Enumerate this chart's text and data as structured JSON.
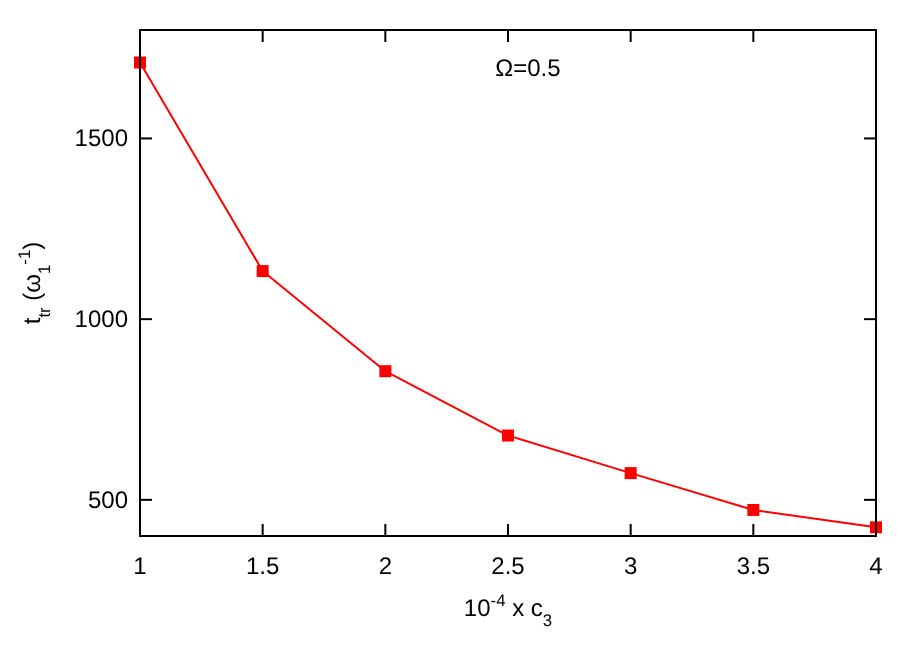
{
  "chart_data": {
    "type": "line",
    "xlabel": "10$^{-4}$ x c$_{3}$",
    "ylabel": "t$_{tr}$ (ω$_{1}$$^{-1}$)",
    "annotations": [
      "Ω=0.5"
    ],
    "x": [
      1,
      1.5,
      2,
      2.5,
      3,
      3.5,
      4
    ],
    "series": [
      {
        "color": "#ff0000",
        "values": [
          1710,
          1133,
          856,
          678,
          574,
          472,
          424
        ]
      }
    ],
    "xlim": [
      1,
      4
    ],
    "xticks": [
      1,
      1.5,
      2,
      2.5,
      3,
      3.5,
      4
    ],
    "ylim": [
      400,
      1800
    ],
    "yticks": [
      500,
      1000,
      1500
    ],
    "marker": "square",
    "line_style": "solid"
  }
}
